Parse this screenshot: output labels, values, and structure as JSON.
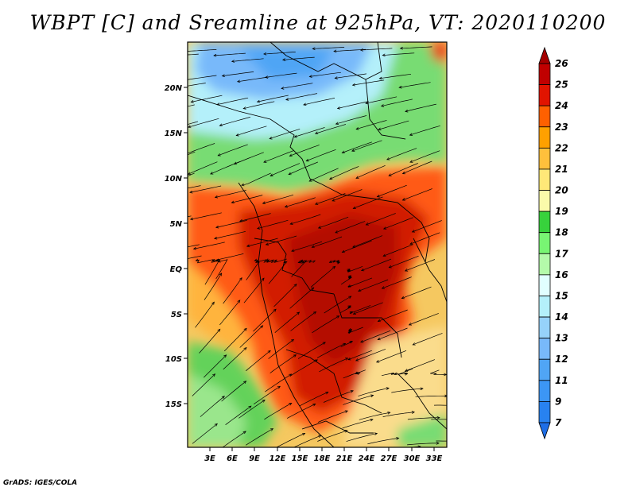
{
  "title": "WBPT [C] and Sreamline at 925hPa, VT: 2020110200",
  "footer": "GrADS: IGES/COLA",
  "map": {
    "lat_labels": [
      "20N",
      "15N",
      "10N",
      "5N",
      "EQ",
      "5S",
      "10S",
      "15S"
    ],
    "lon_labels": [
      "3E",
      "6E",
      "9E",
      "12E",
      "15E",
      "18E",
      "21E",
      "24E",
      "27E",
      "30E",
      "33E"
    ]
  },
  "colorbar": {
    "levels": [
      "7",
      "9",
      "11",
      "12",
      "13",
      "14",
      "15",
      "16",
      "17",
      "18",
      "19",
      "20",
      "21",
      "22",
      "23",
      "24",
      "25",
      "26"
    ],
    "colors": [
      "#1e6ee6",
      "#2882f0",
      "#3c96f5",
      "#50a5f5",
      "#78b9fa",
      "#96d2fa",
      "#b4f0fa",
      "#e1ffff",
      "#b4faaa",
      "#78f573",
      "#37d23c",
      "#fafaaa",
      "#ffe878",
      "#ffc03c",
      "#ffa000",
      "#ff6000",
      "#e11400",
      "#c00000",
      "#a50000"
    ]
  }
}
